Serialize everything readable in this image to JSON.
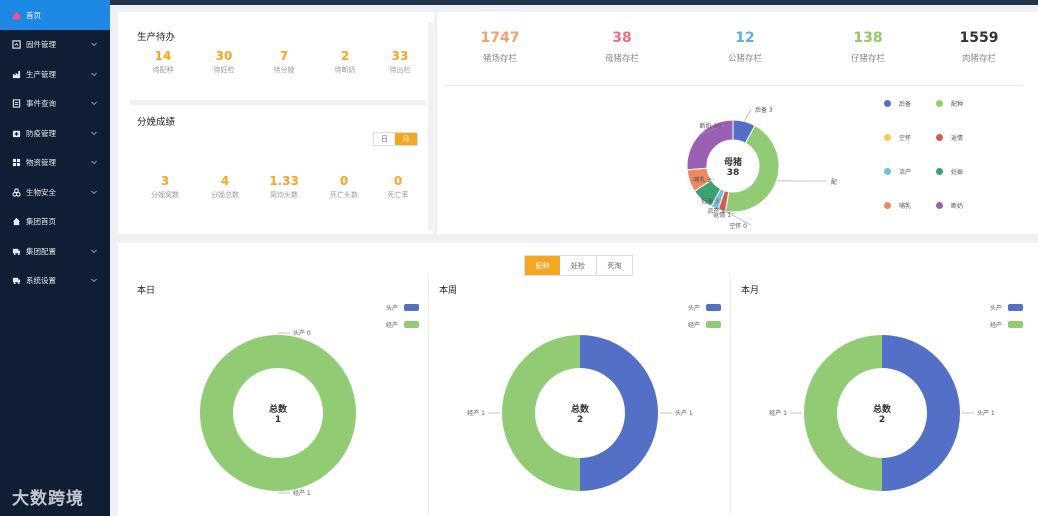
{
  "sidebar": {
    "items": [
      {
        "label": "首页",
        "icon": "home-icon"
      },
      {
        "label": "固件管理",
        "icon": "firmware-icon"
      },
      {
        "label": "生产管理",
        "icon": "production-icon"
      },
      {
        "label": "事件查询",
        "icon": "event-icon"
      },
      {
        "label": "防疫管理",
        "icon": "vaccine-icon"
      },
      {
        "label": "物资管理",
        "icon": "supplies-icon"
      },
      {
        "label": "生物安全",
        "icon": "biohazard-icon"
      },
      {
        "label": "集团首页",
        "icon": "group-home-icon"
      },
      {
        "label": "集团配置",
        "icon": "group-config-icon"
      },
      {
        "label": "系统设置",
        "icon": "settings-icon"
      }
    ]
  },
  "production": {
    "title": "生产待办",
    "items": [
      {
        "value": "14",
        "label": "待配种"
      },
      {
        "value": "30",
        "label": "待妊检"
      },
      {
        "value": "7",
        "label": "待分娩"
      },
      {
        "value": "2",
        "label": "待断奶"
      },
      {
        "value": "33",
        "label": "待出栏"
      }
    ]
  },
  "farrowing": {
    "title": "分娩成绩",
    "toggle": [
      "日",
      "月"
    ],
    "items": [
      {
        "value": "3",
        "label": "分娩窝数"
      },
      {
        "value": "4",
        "label": "分娩总数"
      },
      {
        "value": "1.33",
        "label": "窝均头数"
      },
      {
        "value": "0",
        "label": "死亡头数"
      },
      {
        "value": "0",
        "label": "死亡率"
      }
    ]
  },
  "inventory": {
    "items": [
      {
        "value": "1747",
        "label": "猪场存栏",
        "color": "#f0a070"
      },
      {
        "value": "38",
        "label": "母猪存栏",
        "color": "#e8707e"
      },
      {
        "value": "12",
        "label": "公猪存栏",
        "color": "#5aaed8"
      },
      {
        "value": "138",
        "label": "仔猪存栏",
        "color": "#92c865"
      },
      {
        "value": "1559",
        "label": "肉猪存栏",
        "color": "#333333"
      }
    ]
  },
  "sow_chart": {
    "center_title": "母猪",
    "center_value": "38"
  },
  "tabs": [
    "配种",
    "妊检",
    "死淘"
  ],
  "mini_charts": [
    {
      "title": "本日",
      "center_title": "总数",
      "center_value": "1"
    },
    {
      "title": "本周",
      "center_title": "总数",
      "center_value": "2"
    },
    {
      "title": "本月",
      "center_title": "总数",
      "center_value": "2"
    }
  ],
  "watermark": "大数跨境",
  "chart_data": [
    {
      "type": "pie",
      "title": "母猪",
      "series": [
        {
          "name": "后备",
          "value": 3,
          "color": "#5470c6"
        },
        {
          "name": "配种",
          "value": 17,
          "color": "#91cc75"
        },
        {
          "name": "空怀",
          "value": 0,
          "color": "#fac858"
        },
        {
          "name": "返情",
          "value": 1,
          "color": "#d45a5a"
        },
        {
          "name": "流产",
          "value": 1,
          "color": "#73c0de"
        },
        {
          "name": "妊娠",
          "value": 3,
          "color": "#3ba272"
        },
        {
          "name": "哺乳",
          "value": 3,
          "color": "#f08a5d"
        },
        {
          "name": "断奶",
          "value": 10,
          "color": "#9a60b4"
        }
      ]
    },
    {
      "type": "pie",
      "title": "本日",
      "series": [
        {
          "name": "头产",
          "value": 0,
          "color": "#5470c6"
        },
        {
          "name": "经产",
          "value": 1,
          "color": "#91cc75"
        }
      ]
    },
    {
      "type": "pie",
      "title": "本周",
      "series": [
        {
          "name": "头产",
          "value": 1,
          "color": "#5470c6"
        },
        {
          "name": "经产",
          "value": 1,
          "color": "#91cc75"
        }
      ]
    },
    {
      "type": "pie",
      "title": "本月",
      "series": [
        {
          "name": "头产",
          "value": 1,
          "color": "#5470c6"
        },
        {
          "name": "经产",
          "value": 1,
          "color": "#91cc75"
        }
      ]
    }
  ]
}
